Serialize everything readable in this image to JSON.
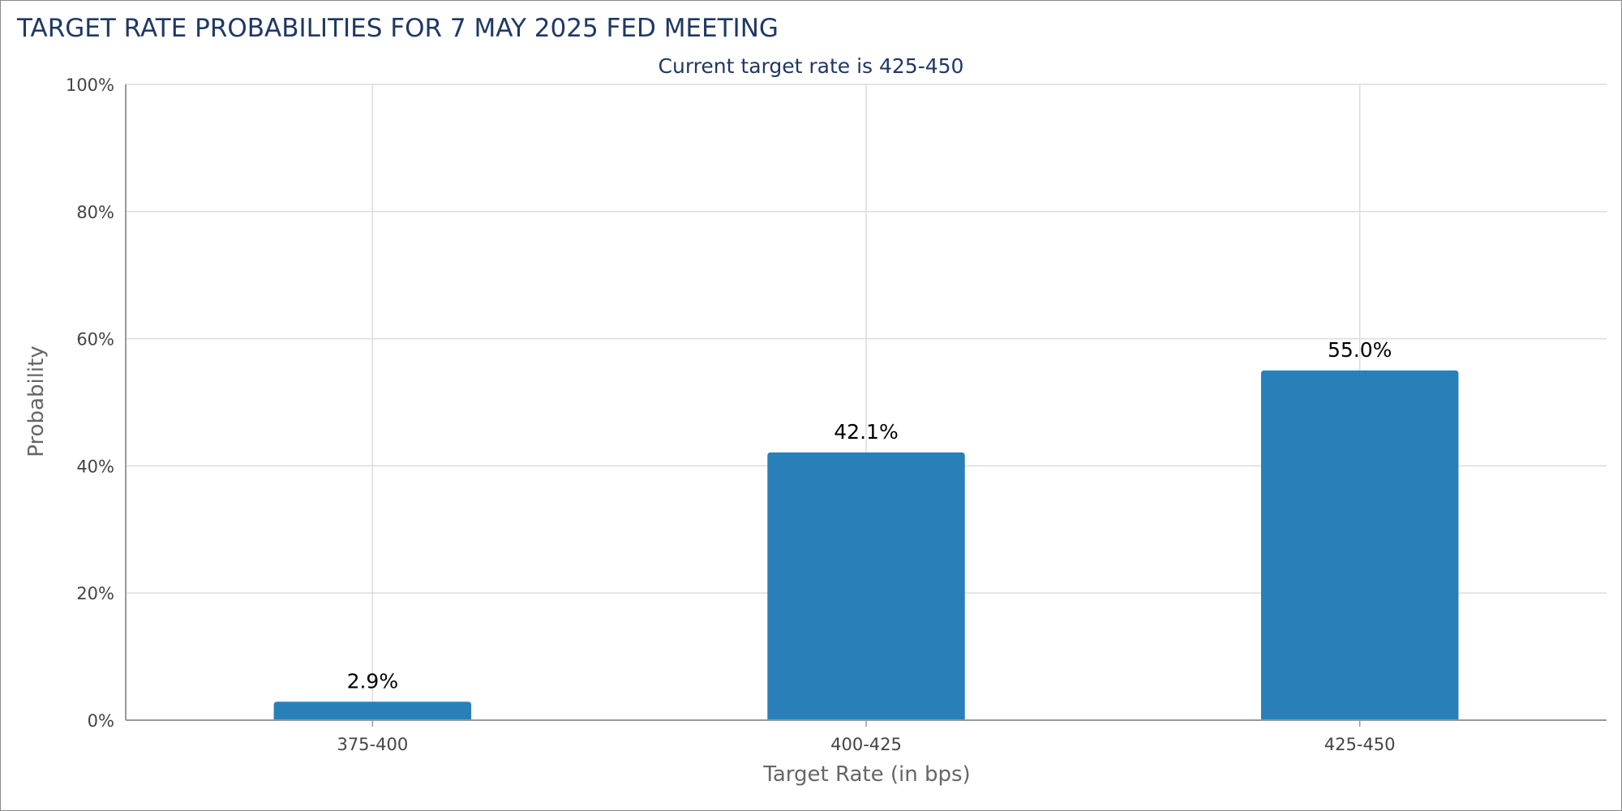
{
  "chart_data": {
    "type": "bar",
    "title": "TARGET RATE PROBABILITIES FOR 7 MAY 2025 FED MEETING",
    "subtitle": "Current target rate is 425-450",
    "xlabel": "Target Rate (in bps)",
    "ylabel": "Probability",
    "categories": [
      "375-400",
      "400-425",
      "425-450"
    ],
    "values": [
      2.9,
      42.1,
      55.0
    ],
    "data_labels": [
      "2.9%",
      "42.1%",
      "55.0%"
    ],
    "ylim": [
      0,
      100
    ],
    "yticks": [
      "0%",
      "20%",
      "40%",
      "60%",
      "80%",
      "100%"
    ],
    "ytick_values": [
      0,
      20,
      40,
      60,
      80,
      100
    ],
    "grid": true,
    "legend": "none",
    "bar_color": "#2980b9"
  }
}
